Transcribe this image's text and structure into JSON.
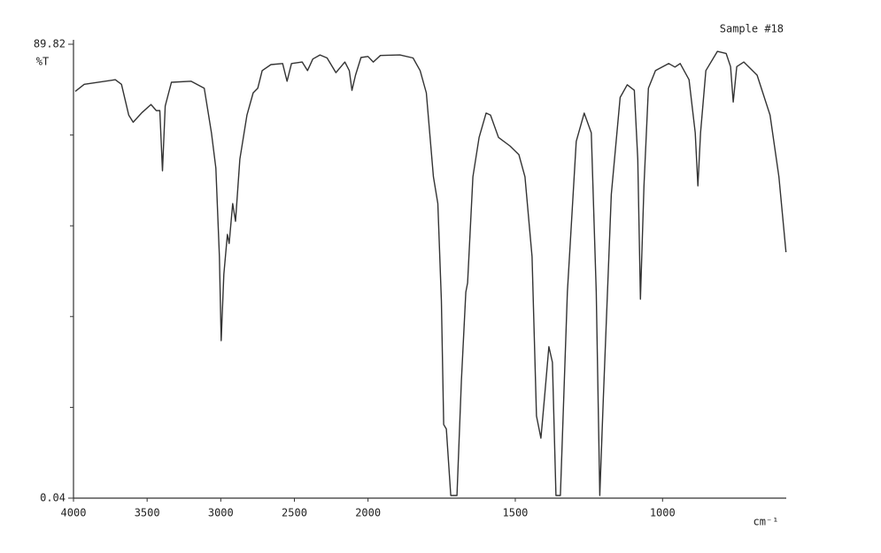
{
  "chart_data": {
    "type": "line",
    "title": "Sample #18",
    "ylabel": "%T",
    "xlabel": "cm⁻¹",
    "xlim": [
      4000,
      580
    ],
    "xticks": [
      4000,
      3500,
      3000,
      2500,
      2000,
      1500,
      1000
    ],
    "xscale": {
      "break": 2000,
      "factor": 2
    },
    "ylim": [
      0.04,
      89.82
    ],
    "yticks": [
      0.04,
      89.82
    ],
    "minor_yticks": [
      17.996,
      35.952,
      53.908,
      71.864
    ],
    "grid": false,
    "series": [
      {
        "color": "#333333",
        "x": [
          3988,
          3927,
          3716,
          3674,
          3625,
          3595,
          3535,
          3474,
          3438,
          3414,
          3396,
          3377,
          3335,
          3202,
          3112,
          3063,
          3033,
          3009,
          2997,
          2979,
          2955,
          2943,
          2919,
          2900,
          2870,
          2822,
          2780,
          2749,
          2719,
          2659,
          2580,
          2550,
          2520,
          2447,
          2411,
          2375,
          2326,
          2278,
          2218,
          2157,
          2127,
          2109,
          2085,
          2048,
          2000,
          1982,
          1958,
          1892,
          1847,
          1823,
          1802,
          1778,
          1763,
          1751,
          1743,
          1734,
          1719,
          1698,
          1683,
          1668,
          1662,
          1644,
          1623,
          1599,
          1584,
          1557,
          1518,
          1488,
          1467,
          1443,
          1428,
          1413,
          1401,
          1386,
          1374,
          1362,
          1347,
          1323,
          1293,
          1266,
          1242,
          1225,
          1213,
          1201,
          1174,
          1144,
          1120,
          1096,
          1084,
          1075,
          1063,
          1048,
          1024,
          979,
          958,
          940,
          910,
          889,
          880,
          871,
          853,
          814,
          784,
          769,
          760,
          748,
          724,
          679,
          635,
          605,
          581
        ],
        "values": [
          80.5,
          81.9,
          82.8,
          81.9,
          75.8,
          74.4,
          76.3,
          77.9,
          76.7,
          76.7,
          64.8,
          77.6,
          82.3,
          82.5,
          81.1,
          72.3,
          65.3,
          47.8,
          31.2,
          44.3,
          52.2,
          50.4,
          58.3,
          54.8,
          67.1,
          75.8,
          80.2,
          81.1,
          84.6,
          85.8,
          86.0,
          82.5,
          86.0,
          86.3,
          84.6,
          86.9,
          87.7,
          87.1,
          84.2,
          86.3,
          84.6,
          80.7,
          83.7,
          87.2,
          87.4,
          86.3,
          87.6,
          87.7,
          87.1,
          84.6,
          80.2,
          63.6,
          58.3,
          39.1,
          14.6,
          13.7,
          0.56,
          0.56,
          23.3,
          40.8,
          42.6,
          63.6,
          71.4,
          76.2,
          75.8,
          71.4,
          69.7,
          68.0,
          63.6,
          47.8,
          16.3,
          11.9,
          19.8,
          30.0,
          26.9,
          0.56,
          0.56,
          40.8,
          70.6,
          76.2,
          72.3,
          40.8,
          0.56,
          19.8,
          60.1,
          79.3,
          81.8,
          80.7,
          67.1,
          39.4,
          61.8,
          81.1,
          84.6,
          86.0,
          85.3,
          86.0,
          82.8,
          72.3,
          61.8,
          72.3,
          84.6,
          88.4,
          88.0,
          85.4,
          78.4,
          85.4,
          86.3,
          83.7,
          75.8,
          63.6,
          48.7
        ]
      }
    ]
  }
}
